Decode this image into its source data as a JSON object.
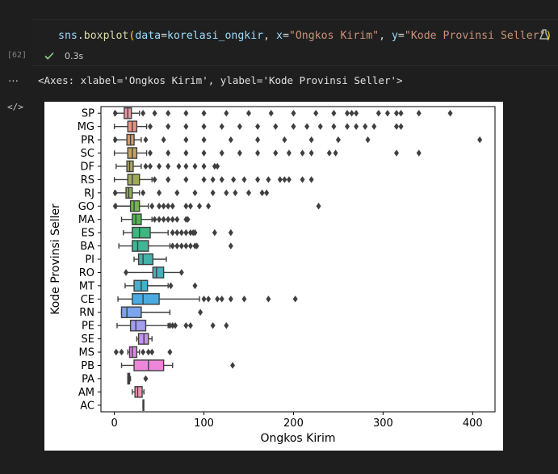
{
  "cell": {
    "execution_count": "[62]",
    "exec_time": "0.3s",
    "code_tokens": [
      {
        "t": "sns",
        "c": "var"
      },
      {
        "t": ".",
        "c": "punc"
      },
      {
        "t": "boxplot",
        "c": "fn"
      },
      {
        "t": "(",
        "c": "paren"
      },
      {
        "t": "data",
        "c": "var"
      },
      {
        "t": "=",
        "c": "punc"
      },
      {
        "t": "korelasi_ongkir",
        "c": "var"
      },
      {
        "t": ", ",
        "c": "punc"
      },
      {
        "t": "x",
        "c": "var"
      },
      {
        "t": "=",
        "c": "punc"
      },
      {
        "t": "\"Ongkos Kirim\"",
        "c": "str"
      },
      {
        "t": ", ",
        "c": "punc"
      },
      {
        "t": "y",
        "c": "var"
      },
      {
        "t": "=",
        "c": "punc"
      },
      {
        "t": "\"Kode Provinsi Seller\"",
        "c": "str"
      },
      {
        "t": ")",
        "c": "paren"
      }
    ],
    "output_text": "<Axes: xlabel='Ongkos Kirim', ylabel='Kode Provinsi Seller'>",
    "more_icon": "…",
    "output_icon": "</>"
  },
  "colors": {
    "editor_bg": "#1e1e1e",
    "check": "#89d185"
  },
  "chart_data": {
    "type": "boxplot",
    "xlabel": "Ongkos Kirim",
    "ylabel": "Kode Provinsi Seller",
    "xlim": [
      -15,
      425
    ],
    "xticks": [
      0,
      100,
      200,
      300,
      400
    ],
    "categories": [
      "SP",
      "MG",
      "PR",
      "SC",
      "DF",
      "RS",
      "RJ",
      "GO",
      "MA",
      "ES",
      "BA",
      "PI",
      "RO",
      "MT",
      "CE",
      "RN",
      "PE",
      "SE",
      "MS",
      "PB",
      "PA",
      "AM",
      "AC"
    ],
    "colors": [
      "#ea96a3",
      "#e69485",
      "#d99c67",
      "#c6a361",
      "#b1a660",
      "#a0ab58",
      "#8eb152",
      "#71b64f",
      "#4db552",
      "#3eb67e",
      "#41b596",
      "#43b3aa",
      "#44b2bb",
      "#43b0cc",
      "#4aabe2",
      "#7ba5ec",
      "#a39dee",
      "#c393ee",
      "#de86ea",
      "#ef86db",
      "#f78ac4",
      "#f490b0",
      "#ec96a0"
    ],
    "boxes": [
      {
        "wmin": 0,
        "q1": 11,
        "median": 15,
        "q3": 19,
        "wmax": 28,
        "fliers": [
          1,
          32,
          45,
          60,
          80,
          100,
          125,
          150,
          175,
          200,
          225,
          245,
          260,
          265,
          270,
          295,
          305,
          315,
          320,
          340,
          375
        ]
      },
      {
        "wmin": 0,
        "q1": 15,
        "median": 20,
        "q3": 25,
        "wmax": 36,
        "fliers": [
          40,
          60,
          80,
          100,
          120,
          140,
          160,
          180,
          200,
          215,
          230,
          245,
          260,
          270,
          280,
          290,
          315,
          320
        ]
      },
      {
        "wmin": 0,
        "q1": 14,
        "median": 18,
        "q3": 22,
        "wmax": 30,
        "fliers": [
          1,
          35,
          55,
          80,
          100,
          130,
          160,
          190,
          220,
          250,
          283,
          408
        ]
      },
      {
        "wmin": 0,
        "q1": 15,
        "median": 20,
        "q3": 25,
        "wmax": 36,
        "fliers": [
          40,
          60,
          80,
          100,
          120,
          140,
          160,
          180,
          195,
          210,
          220,
          240,
          247,
          315,
          340
        ]
      },
      {
        "wmin": 2,
        "q1": 14,
        "median": 17,
        "q3": 21,
        "wmax": 30,
        "fliers": [
          35,
          40,
          50,
          60,
          72,
          80,
          90,
          100,
          112,
          115
        ]
      },
      {
        "wmin": 0,
        "q1": 15,
        "median": 20,
        "q3": 28,
        "wmax": 42,
        "fliers": [
          45,
          60,
          80,
          100,
          110,
          120,
          133,
          145,
          160,
          172,
          185,
          190,
          195,
          210,
          220
        ]
      },
      {
        "wmin": 0,
        "q1": 13,
        "median": 16,
        "q3": 20,
        "wmax": 28,
        "fliers": [
          1,
          32,
          50,
          70,
          90,
          110,
          125,
          135,
          150,
          165,
          170
        ]
      },
      {
        "wmin": 2,
        "q1": 18,
        "median": 22,
        "q3": 28,
        "wmax": 38,
        "fliers": [
          1,
          42,
          50,
          55,
          60,
          65,
          80,
          85,
          95,
          105,
          228
        ]
      },
      {
        "wmin": 8,
        "q1": 20,
        "median": 24,
        "q3": 30,
        "wmax": 42,
        "fliers": [
          45,
          50,
          55,
          60,
          65,
          70,
          80,
          82
        ]
      },
      {
        "wmin": 10,
        "q1": 20,
        "median": 28,
        "q3": 40,
        "wmax": 60,
        "fliers": [
          65,
          70,
          75,
          80,
          85,
          88,
          90,
          112,
          130
        ]
      },
      {
        "wmin": 5,
        "q1": 20,
        "median": 26,
        "q3": 38,
        "wmax": 62,
        "fliers": [
          65,
          70,
          75,
          80,
          85,
          90,
          92,
          130
        ]
      },
      {
        "wmin": 22,
        "q1": 27,
        "median": 32,
        "q3": 43,
        "wmax": 58,
        "fliers": []
      },
      {
        "wmin": 13,
        "q1": 43,
        "median": 47,
        "q3": 55,
        "wmax": 75,
        "fliers": [
          13,
          75
        ]
      },
      {
        "wmin": 12,
        "q1": 22,
        "median": 30,
        "q3": 37,
        "wmax": 60,
        "fliers": [
          63,
          90
        ]
      },
      {
        "wmin": 4,
        "q1": 20,
        "median": 32,
        "q3": 50,
        "wmax": 95,
        "fliers": [
          100,
          105,
          115,
          120,
          130,
          145,
          172,
          202
        ]
      },
      {
        "wmin": 8,
        "q1": 8,
        "median": 14,
        "q3": 30,
        "wmax": 62,
        "fliers": [
          96
        ]
      },
      {
        "wmin": 3,
        "q1": 18,
        "median": 24,
        "q3": 35,
        "wmax": 60,
        "fliers": [
          62,
          65,
          68,
          80,
          85,
          110,
          125
        ]
      },
      {
        "wmin": 25,
        "q1": 27,
        "median": 33,
        "q3": 38,
        "wmax": 42,
        "fliers": []
      },
      {
        "wmin": 15,
        "q1": 17,
        "median": 20,
        "q3": 25,
        "wmax": 28,
        "fliers": [
          2,
          8,
          32,
          38,
          42,
          62
        ]
      },
      {
        "wmin": 8,
        "q1": 22,
        "median": 38,
        "q3": 55,
        "wmax": 65,
        "fliers": [
          132
        ]
      },
      {
        "wmin": 15,
        "q1": 15,
        "median": 16,
        "q3": 17,
        "wmax": 18,
        "fliers": [
          35
        ]
      },
      {
        "wmin": 20,
        "q1": 23,
        "median": 26,
        "q3": 31,
        "wmax": 33,
        "fliers": []
      },
      {
        "wmin": 32,
        "q1": 32,
        "median": 32,
        "q3": 32,
        "wmax": 32,
        "fliers": []
      }
    ]
  }
}
